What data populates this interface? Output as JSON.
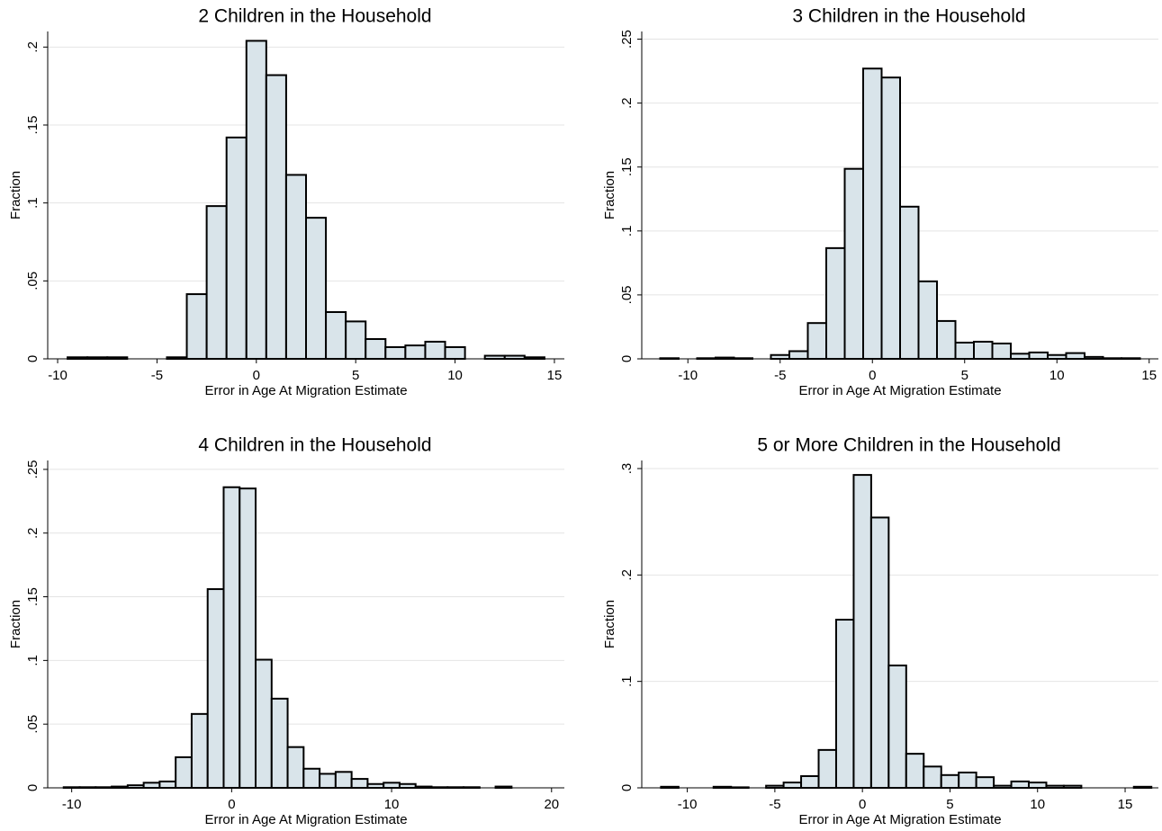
{
  "chart_data": [
    {
      "type": "histogram",
      "title": "2 Children in the Household",
      "xlabel": "Error in Age At Migration Estimate",
      "ylabel": "Fraction",
      "bins": [
        -9.5,
        -8.5,
        -7.5,
        -6.5,
        -5.5,
        -4.5,
        -3.5,
        -2.5,
        -1.5,
        -0.5,
        0.5,
        1.5,
        2.5,
        3.5,
        4.5,
        5.5,
        6.5,
        7.5,
        8.5,
        9.5,
        10.5,
        11.5,
        12.5,
        13.5,
        14.5
      ],
      "counts": [
        0.001,
        0.001,
        0.001,
        0,
        0,
        0.001,
        0.0415,
        0.098,
        0.142,
        0.204,
        0.182,
        0.118,
        0.0905,
        0.03,
        0.024,
        0.0127,
        0.0075,
        0.0086,
        0.011,
        0.0075,
        0,
        0.002,
        0.002,
        0.001
      ],
      "color": "#d9e4ea",
      "xlim": [
        -10.5,
        15.5
      ],
      "ylim": [
        0,
        0.21
      ],
      "xticks": [
        -10,
        -5,
        0,
        5,
        10,
        15
      ],
      "yticks": [
        0,
        {
          "value": 0.05,
          "label": ".05"
        },
        {
          "value": 0.1,
          "label": ".1"
        },
        {
          "value": 0.15,
          "label": ".15"
        },
        {
          "value": 0.2,
          "label": ".2"
        }
      ],
      "grid": true
    },
    {
      "type": "histogram",
      "title": "3 Children in the Household",
      "xlabel": "Error in Age At Migration Estimate",
      "ylabel": "Fraction",
      "bins": [
        -11.5,
        -10.5,
        -9.5,
        -8.5,
        -7.5,
        -6.5,
        -5.5,
        -4.5,
        -3.5,
        -2.5,
        -1.5,
        -0.5,
        0.5,
        1.5,
        2.5,
        3.5,
        4.5,
        5.5,
        6.5,
        7.5,
        8.5,
        9.5,
        10.5,
        11.5,
        12.5,
        13.5,
        14.5
      ],
      "counts": [
        0.0005,
        0,
        0.0005,
        0.001,
        0.0005,
        0,
        0.003,
        0.006,
        0.028,
        0.0866,
        0.1486,
        0.227,
        0.22,
        0.119,
        0.0606,
        0.0296,
        0.0127,
        0.0134,
        0.012,
        0.004,
        0.005,
        0.003,
        0.0045,
        0.0015,
        0.0005,
        0.0005
      ],
      "color": "#d9e4ea",
      "xlim": [
        -12.5,
        15.5
      ],
      "ylim": [
        0,
        0.256
      ],
      "xticks": [
        -10,
        -5,
        0,
        5,
        10,
        15
      ],
      "yticks": [
        0,
        {
          "value": 0.05,
          "label": ".05"
        },
        {
          "value": 0.1,
          "label": ".1"
        },
        {
          "value": 0.15,
          "label": ".15"
        },
        {
          "value": 0.2,
          "label": ".2"
        },
        {
          "value": 0.25,
          "label": ".25"
        }
      ],
      "grid": true
    },
    {
      "type": "histogram",
      "title": "4 Children in the Household",
      "xlabel": "Error in Age At Migration Estimate",
      "ylabel": "Fraction",
      "bins": [
        -10.5,
        -9.5,
        -8.5,
        -7.5,
        -6.5,
        -5.5,
        -4.5,
        -3.5,
        -2.5,
        -1.5,
        -0.5,
        0.5,
        1.5,
        2.5,
        3.5,
        4.5,
        5.5,
        6.5,
        7.5,
        8.5,
        9.5,
        10.5,
        11.5,
        12.5,
        13.5,
        14.5,
        15.5,
        16.5,
        17.5
      ],
      "counts": [
        0.0005,
        0.0005,
        0.0005,
        0.001,
        0.002,
        0.004,
        0.005,
        0.024,
        0.058,
        0.156,
        0.236,
        0.235,
        0.1006,
        0.07,
        0.032,
        0.015,
        0.011,
        0.0125,
        0.007,
        0.003,
        0.004,
        0.003,
        0.001,
        0.0005,
        0.0005,
        0.0005,
        0,
        0.001
      ],
      "color": "#d9e4ea",
      "xlim": [
        -11.5,
        20.8
      ],
      "ylim": [
        0,
        0.257
      ],
      "xticks": [
        -10,
        0,
        10,
        20
      ],
      "yticks": [
        0,
        {
          "value": 0.05,
          "label": ".05"
        },
        {
          "value": 0.1,
          "label": ".1"
        },
        {
          "value": 0.15,
          "label": ".15"
        },
        {
          "value": 0.2,
          "label": ".2"
        },
        {
          "value": 0.25,
          "label": ".25"
        }
      ],
      "grid": true
    },
    {
      "type": "histogram",
      "title": "5 or More Children in the Household",
      "xlabel": "Error in Age At Migration Estimate",
      "ylabel": "Fraction",
      "bins": [
        -11.5,
        -10.5,
        -9.5,
        -8.5,
        -7.5,
        -6.5,
        -5.5,
        -4.5,
        -3.5,
        -2.5,
        -1.5,
        -0.5,
        0.5,
        1.5,
        2.5,
        3.5,
        4.5,
        5.5,
        6.5,
        7.5,
        8.5,
        9.5,
        10.5,
        11.5,
        12.5,
        13.5,
        14.5,
        15.5,
        16.5
      ],
      "counts": [
        0.001,
        0,
        0,
        0.001,
        0.0005,
        0,
        0.002,
        0.005,
        0.011,
        0.0356,
        0.158,
        0.294,
        0.254,
        0.115,
        0.032,
        0.02,
        0.012,
        0.0144,
        0.01,
        0.002,
        0.006,
        0.005,
        0.002,
        0.002,
        0,
        0,
        0,
        0.001
      ],
      "color": "#d9e4ea",
      "xlim": [
        -12.6,
        16.9
      ],
      "ylim": [
        0,
        0.3076
      ],
      "xticks": [
        -10,
        -5,
        0,
        5,
        10,
        15
      ],
      "yticks": [
        0,
        {
          "value": 0.1,
          "label": ".1"
        },
        {
          "value": 0.2,
          "label": ".2"
        },
        {
          "value": 0.3,
          "label": ".3"
        }
      ],
      "grid": true
    }
  ]
}
